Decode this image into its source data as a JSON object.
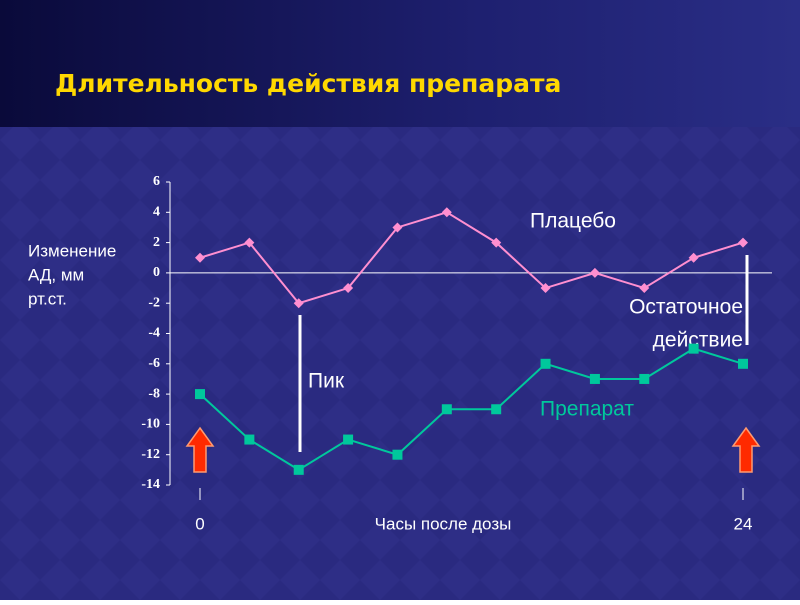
{
  "chart_data": {
    "type": "line",
    "title": "Длительность действия препарата",
    "ylabel": [
      "Изменение",
      "АД, мм",
      "рт.ст."
    ],
    "xlabel": "Часы после дозы",
    "categories": [
      "0",
      null,
      null,
      null,
      null,
      null,
      null,
      null,
      null,
      null,
      null,
      "24"
    ],
    "series": [
      {
        "name": "Плацебо",
        "color": "#ff8fd0",
        "values": [
          1,
          2,
          -2,
          -1,
          3,
          4,
          2,
          -1,
          0,
          -1,
          1,
          2
        ]
      },
      {
        "name": "Препарат",
        "color": "#00c89c",
        "values": [
          -8,
          -11,
          -13,
          -11,
          -12,
          -9,
          -9,
          -6,
          -7,
          -7,
          -5,
          -6
        ]
      }
    ],
    "ylim": [
      -14,
      6
    ],
    "yticks": [
      -14,
      -12,
      -10,
      -8,
      -6,
      -4,
      -2,
      0,
      2,
      4,
      6
    ],
    "annotations": [
      "Пик",
      "Остаточное",
      "действие"
    ]
  }
}
